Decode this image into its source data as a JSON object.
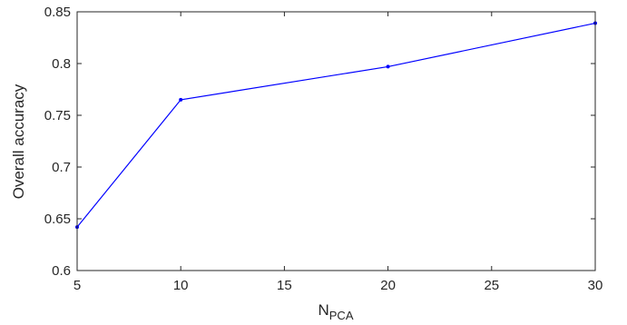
{
  "chart_data": {
    "type": "line",
    "title": "",
    "xlabel": "N",
    "xlabel_subscript": "PCA",
    "ylabel": "Overall accuracy",
    "x": [
      5,
      10,
      20,
      30
    ],
    "series": [
      {
        "values": [
          0.642,
          0.765,
          0.797,
          0.839
        ],
        "color": "#0000ff",
        "marker": "dot"
      }
    ],
    "xlim": [
      5,
      30
    ],
    "ylim": [
      0.6,
      0.85
    ],
    "xticks": [
      5,
      10,
      15,
      20,
      25,
      30
    ],
    "yticks": [
      0.6,
      0.65,
      0.7,
      0.75,
      0.8,
      0.85
    ],
    "xtick_labels": [
      "5",
      "10",
      "15",
      "20",
      "25",
      "30"
    ],
    "ytick_labels": [
      "0.6",
      "0.65",
      "0.7",
      "0.75",
      "0.8",
      "0.85"
    ],
    "grid": false,
    "box": true
  }
}
